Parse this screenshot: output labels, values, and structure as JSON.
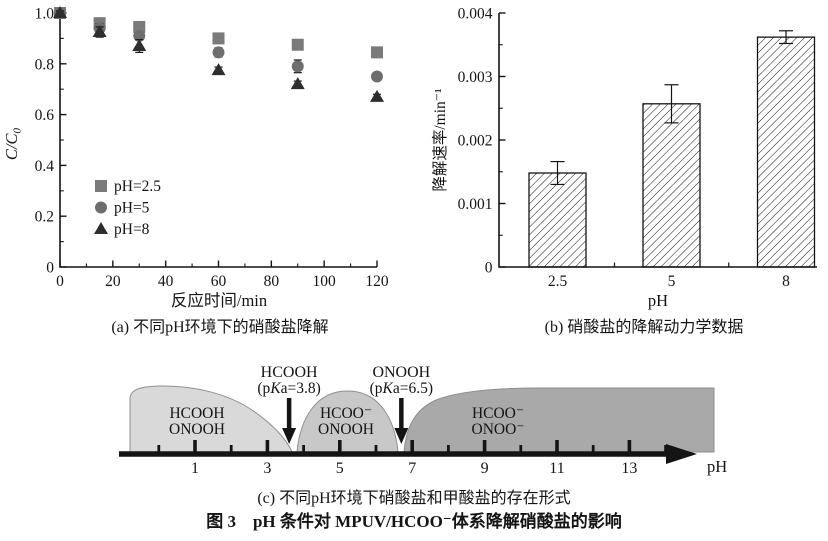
{
  "colors": {
    "ink": "#141414",
    "square_marker": "#7a7a7a",
    "circle_marker": "#6e6e6e",
    "triangle_marker": "#2e2e2e",
    "region1": "#d9d9d9",
    "region2": "#c8c8c8",
    "region3": "#a9a9a9",
    "region_border": "#8f8f8f"
  },
  "captions": {
    "a": "(a) 不同pH环境下的硝酸盐降解",
    "b": "(b) 硝酸盐的降解动力学数据",
    "c": "(c) 不同pH环境下硝酸盐和甲酸盐的存在形式",
    "figure": "图 3　pH 条件对 MPUV/HCOO⁻体系降解硝酸盐的影响"
  },
  "chart_data": [
    {
      "id": "a",
      "type": "scatter",
      "xlabel": "反应时间/min",
      "ylabel": "C/C₀",
      "xlim": [
        0,
        120
      ],
      "ylim": [
        0,
        1.0
      ],
      "xticks": [
        0,
        20,
        40,
        60,
        80,
        100,
        120
      ],
      "xtick_labels": [
        "0",
        "20",
        "40",
        "60",
        "80",
        "100",
        "120"
      ],
      "yticks": [
        0,
        0.2,
        0.4,
        0.6,
        0.8,
        1.0
      ],
      "ytick_labels": [
        "0",
        "0.2",
        "0.4",
        "0.6",
        "0.8",
        "1.0"
      ],
      "x": [
        0,
        15,
        30,
        60,
        90,
        120
      ],
      "series": [
        {
          "name": "pH=2.5",
          "marker": "square",
          "color": "#7a7a7a",
          "y": [
            1.0,
            0.96,
            0.945,
            0.9,
            0.875,
            0.845
          ],
          "yerr": [
            0.008,
            0.012,
            0.012,
            0.01,
            0.01,
            0.008
          ]
        },
        {
          "name": "pH=5",
          "marker": "circle",
          "color": "#6e6e6e",
          "y": [
            1.0,
            0.94,
            0.91,
            0.845,
            0.79,
            0.75
          ],
          "yerr": [
            0.008,
            0.018,
            0.015,
            0.018,
            0.025,
            0.012
          ]
        },
        {
          "name": "pH=8",
          "marker": "triangle",
          "color": "#2e2e2e",
          "y": [
            1.0,
            0.925,
            0.87,
            0.775,
            0.72,
            0.67
          ],
          "yerr": [
            0.008,
            0.02,
            0.025,
            0.012,
            0.012,
            0.01
          ]
        }
      ],
      "legend_position": "center-left",
      "grid": false
    },
    {
      "id": "b",
      "type": "bar",
      "xlabel": "pH",
      "ylabel": "降解速率/min⁻¹",
      "categories": [
        "2.5",
        "5",
        "8"
      ],
      "values": [
        0.00148,
        0.00257,
        0.00362
      ],
      "errors": [
        0.00018,
        0.0003,
        0.0001
      ],
      "ylim": [
        0,
        0.004
      ],
      "yticks": [
        0,
        0.001,
        0.002,
        0.003,
        0.004
      ],
      "ytick_labels": [
        "0",
        "0.001",
        "0.002",
        "0.003",
        "0.004"
      ],
      "bar_style": "diagonal-hatch",
      "grid": false
    },
    {
      "id": "c",
      "type": "diagram",
      "axis_label": "pH",
      "axis_range": [
        0,
        14
      ],
      "tick_labels": [
        "1",
        "3",
        "5",
        "7",
        "9",
        "11",
        "13"
      ],
      "regions": [
        {
          "lines": [
            "HCOOH",
            "ONOOH"
          ],
          "ph_range": [
            -0.8,
            3.7
          ]
        },
        {
          "lines": [
            "HCOO⁻",
            "ONOOH"
          ],
          "ph_range": [
            3.8,
            6.6
          ]
        },
        {
          "lines": [
            "HCOO⁻",
            "ONOO⁻"
          ],
          "ph_range": [
            6.8,
            15.3
          ]
        }
      ],
      "annotations": [
        {
          "lines": [
            "HCOOH",
            "(pKa=3.8)"
          ],
          "ph": 3.6
        },
        {
          "lines": [
            "ONOOH",
            "(pKa=6.5)"
          ],
          "ph": 6.7
        }
      ]
    }
  ]
}
